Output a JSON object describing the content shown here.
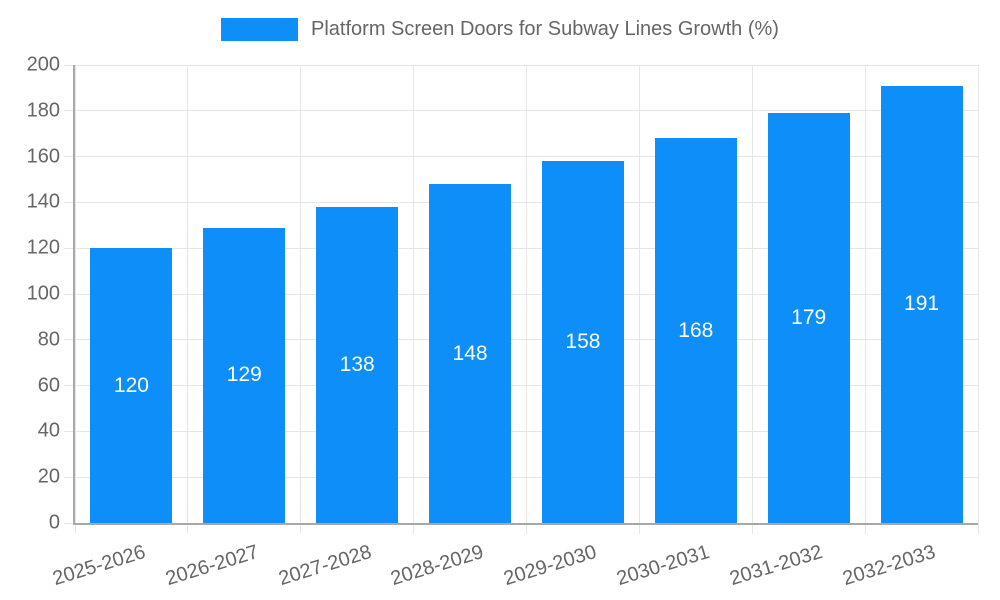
{
  "legend": {
    "label": "Platform Screen Doors for Subway Lines Growth (%)"
  },
  "chart_data": {
    "type": "bar",
    "title": "Platform Screen Doors for Subway Lines Growth (%)",
    "categories": [
      "2025-2026",
      "2026-2027",
      "2027-2028",
      "2028-2029",
      "2029-2030",
      "2030-2031",
      "2031-2032",
      "2032-2033"
    ],
    "values": [
      120,
      129,
      138,
      148,
      158,
      168,
      179,
      191
    ],
    "xlabel": "",
    "ylabel": "",
    "ylim": [
      0,
      200
    ],
    "ytick_step": 20,
    "grid": true,
    "legend_position": "top",
    "value_labels": "inside-center"
  },
  "colors": {
    "bar": "#0d8ef9",
    "value_label": "#ffffff",
    "axis_text": "#666666",
    "grid_line": "#e6e6e6",
    "axis_line": "#a8a8a8"
  }
}
